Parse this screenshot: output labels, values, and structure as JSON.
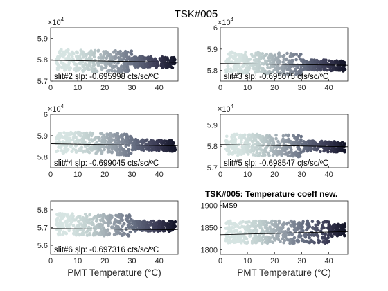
{
  "figure_title": "TSK#005",
  "chart_data": [
    {
      "type": "scatter",
      "x_range": [
        0,
        47
      ],
      "ylim": [
        5.7,
        5.95
      ],
      "yticks": [
        "5.7",
        "5.8",
        "5.9"
      ],
      "xticks": [
        "0",
        "10",
        "20",
        "30",
        "40"
      ],
      "exponent": "×10",
      "exponent_power": "4",
      "slope_label": "slit#2 slp: -0.695998 cts/sc/ºC",
      "xlabel": "",
      "fit": [
        5.798,
        5.788
      ],
      "center": 5.8,
      "spread": 0.05,
      "dy": -0.0003
    },
    {
      "type": "scatter",
      "x_range": [
        0,
        47
      ],
      "ylim": [
        5.75,
        6.0
      ],
      "yticks": [
        "5.8",
        "5.9",
        "6"
      ],
      "xticks": [
        "0",
        "10",
        "20",
        "30",
        "40"
      ],
      "exponent": "×10",
      "exponent_power": "4",
      "slope_label": "slit#3 slp: -0.695075 cts/sc/ºC",
      "xlabel": "",
      "fit": [
        5.832,
        5.824
      ],
      "center": 5.84,
      "spread": 0.05,
      "dy": -0.0004
    },
    {
      "type": "scatter",
      "x_range": [
        0,
        47
      ],
      "ylim": [
        5.75,
        6.0
      ],
      "yticks": [
        "5.8",
        "5.9",
        "6"
      ],
      "xticks": [
        "0",
        "10",
        "20",
        "30",
        "40"
      ],
      "exponent": "×10",
      "exponent_power": "4",
      "slope_label": "slit#4 slp: -0.699045 cts/sc/ºC",
      "xlabel": "",
      "fit": [
        5.862,
        5.852
      ],
      "center": 5.87,
      "spread": 0.05,
      "dy": -0.0004
    },
    {
      "type": "scatter",
      "x_range": [
        0,
        47
      ],
      "ylim": [
        5.7,
        5.95
      ],
      "yticks": [
        "5.7",
        "5.8",
        "5.9"
      ],
      "xticks": [
        "0",
        "10",
        "20",
        "30",
        "40"
      ],
      "exponent": "×10",
      "exponent_power": "4",
      "slope_label": "slit#5 slp: -0.698547 cts/sc/ºC",
      "xlabel": "",
      "fit": [
        5.808,
        5.798
      ],
      "center": 5.81,
      "spread": 0.05,
      "dy": -0.0003
    },
    {
      "type": "scatter",
      "x_range": [
        0,
        47
      ],
      "ylim": [
        5.55,
        5.85
      ],
      "yticks": [
        "5.6",
        "5.7",
        "5.8"
      ],
      "xticks": [
        "0",
        "10",
        "20",
        "30",
        "40"
      ],
      "exponent": "",
      "exponent_power": "",
      "slope_label": "slit#6 slp: -0.697316 cts/sc/ºC",
      "xlabel": "PMT Temperature (°C)",
      "fit": [
        5.695,
        5.688
      ],
      "center": 5.72,
      "spread": 0.06,
      "dy": -0.0003
    },
    {
      "type": "scatter",
      "x_range": [
        0,
        47
      ],
      "ylim": [
        1790,
        1910
      ],
      "yticks": [
        "1800",
        "1850",
        "1900"
      ],
      "xticks": [
        "0",
        "10",
        "20",
        "30",
        "40"
      ],
      "exponent": "",
      "exponent_power": "",
      "slope_label": "",
      "title": "TSK#005: Temperature coeff new.",
      "inset_label": "MS9",
      "xlabel": "PMT Temperature (°C)",
      "fit": [
        1834,
        1841
      ],
      "center": 1840,
      "spread": 28,
      "dy": 0.1
    }
  ]
}
